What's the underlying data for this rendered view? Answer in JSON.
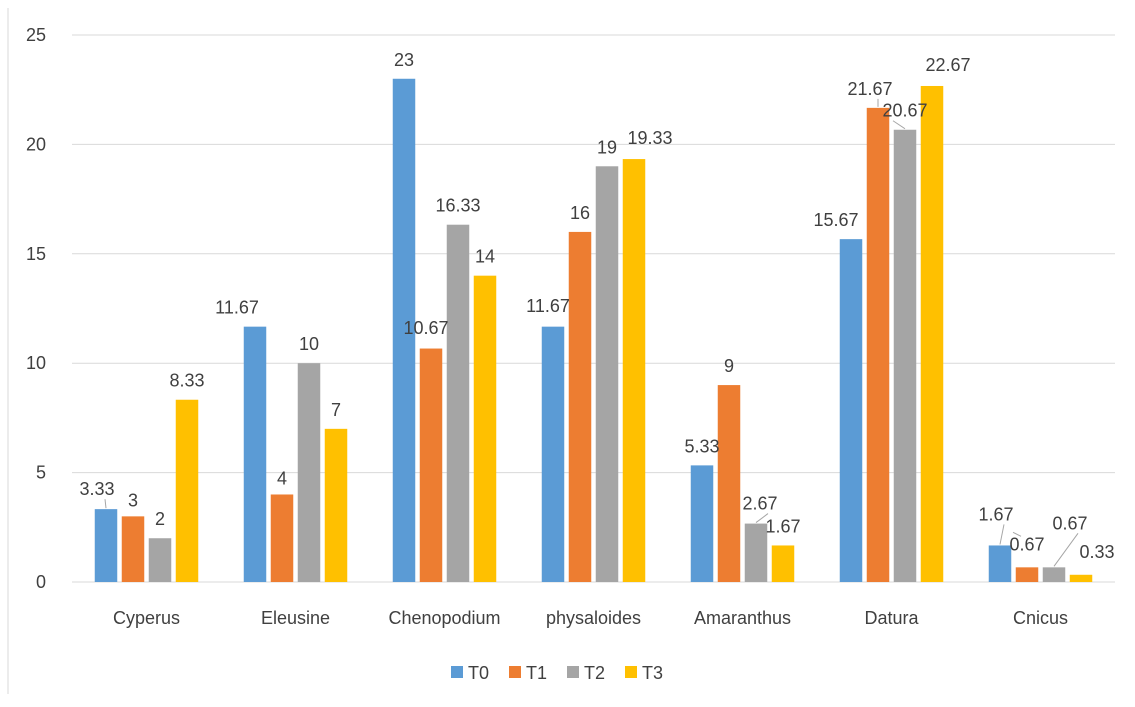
{
  "chart_data": {
    "type": "bar",
    "title": "",
    "xlabel": "",
    "ylabel": "",
    "ylim": [
      0,
      25
    ],
    "yticks": [
      "0",
      "5",
      "10",
      "15",
      "20",
      "25"
    ],
    "grid": true,
    "legend_position": "bottom",
    "categories": [
      "Cyperus",
      "Eleusine",
      "Chenopodium",
      "physaloides",
      "Amaranthus",
      "Datura",
      "Cnicus"
    ],
    "series": [
      {
        "name": "T0",
        "color": "#5b9bd5",
        "values": [
          3.33,
          11.67,
          23,
          11.67,
          5.33,
          15.67,
          1.67
        ],
        "labels": [
          "3.33",
          "11.67",
          "23",
          "11.67",
          "5.33",
          "15.67",
          "1.67"
        ]
      },
      {
        "name": "T1",
        "color": "#ed7d31",
        "values": [
          3,
          4,
          10.67,
          16,
          9,
          21.67,
          0.67
        ],
        "labels": [
          "3",
          "4",
          "10.67",
          "16",
          "9",
          "21.67",
          "0.67"
        ]
      },
      {
        "name": "T2",
        "color": "#a5a5a5",
        "values": [
          2,
          10,
          16.33,
          19,
          2.67,
          20.67,
          0.67
        ],
        "labels": [
          "2",
          "10",
          "16.33",
          "19",
          "2.67",
          "20.67",
          "0.67"
        ]
      },
      {
        "name": "T3",
        "color": "#ffc000",
        "values": [
          8.33,
          7,
          14,
          19.33,
          1.67,
          22.67,
          0.33
        ],
        "labels": [
          "8.33",
          "7",
          "14",
          "19.33",
          "1.67",
          "22.67",
          "0.33"
        ]
      }
    ]
  }
}
